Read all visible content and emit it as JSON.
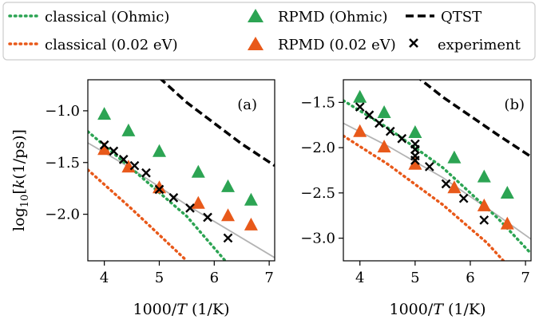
{
  "colors": {
    "green": "#2ca453",
    "orange": "#e8591a",
    "gray": "#b3b3b3",
    "black": "#000000",
    "legend_border": "#cccccc"
  },
  "legend": {
    "entries": [
      {
        "key": "classical_ohmic",
        "label": "classical (Ohmic)"
      },
      {
        "key": "rpmd_ohmic",
        "label": "RPMD (Ohmic)"
      },
      {
        "key": "qtst",
        "label": "QTST"
      },
      {
        "key": "classical_002",
        "label": "classical (0.02 eV)"
      },
      {
        "key": "rpmd_002",
        "label": "RPMD (0.02 eV)"
      },
      {
        "key": "experiment",
        "label": "experiment"
      }
    ]
  },
  "chart_data": [
    {
      "type": "scatter",
      "panel_label": "(a)",
      "xlabel": "1000/T (1/K)",
      "ylabel": "log10[k(1/ps)]",
      "xlim": [
        3.7,
        7.1
      ],
      "ylim": [
        -2.45,
        -0.7
      ],
      "xticks": [
        4,
        5,
        6,
        7
      ],
      "yticks": [
        -1.0,
        -1.5,
        -2.0
      ],
      "ytick_labels": [
        "−1.0",
        "−1.5",
        "−2.0"
      ],
      "series": [
        {
          "name": "QTST",
          "kind": "line",
          "style": "dashed",
          "color": "black",
          "x": [
            5.0,
            5.5,
            6.0,
            6.5,
            7.1
          ],
          "y": [
            -0.68,
            -0.92,
            -1.12,
            -1.32,
            -1.53
          ]
        },
        {
          "name": "classical (Ohmic)",
          "kind": "line",
          "style": "dotted",
          "color": "green",
          "x": [
            3.7,
            4.5,
            5.5,
            6.2
          ],
          "y": [
            -1.2,
            -1.56,
            -2.02,
            -2.45
          ]
        },
        {
          "name": "classical (0.02 eV)",
          "kind": "line",
          "style": "dotted",
          "color": "orange",
          "x": [
            3.7,
            4.5,
            5.2,
            5.5
          ],
          "y": [
            -1.57,
            -1.95,
            -2.3,
            -2.45
          ]
        },
        {
          "name": "fit",
          "kind": "line",
          "style": "solid",
          "color": "gray",
          "x": [
            3.7,
            4.5,
            5.5,
            7.1
          ],
          "y": [
            -1.31,
            -1.56,
            -1.91,
            -2.42
          ]
        },
        {
          "name": "RPMD (Ohmic)",
          "kind": "triangle",
          "color": "green",
          "x": [
            4.0,
            4.44,
            5.0,
            5.71,
            6.25,
            6.67
          ],
          "y": [
            -1.04,
            -1.2,
            -1.4,
            -1.6,
            -1.74,
            -1.87
          ]
        },
        {
          "name": "RPMD (0.02 eV)",
          "kind": "triangle",
          "color": "orange",
          "x": [
            4.0,
            4.44,
            5.0,
            5.71,
            6.25,
            6.67
          ],
          "y": [
            -1.38,
            -1.55,
            -1.75,
            -1.9,
            -2.02,
            -2.11
          ]
        },
        {
          "name": "experiment",
          "kind": "cross",
          "color": "black",
          "x": [
            4.0,
            4.17,
            4.35,
            4.55,
            4.76,
            5.0,
            5.26,
            5.56,
            5.88,
            6.25
          ],
          "y": [
            -1.33,
            -1.39,
            -1.47,
            -1.53,
            -1.6,
            -1.76,
            -1.84,
            -1.94,
            -2.03,
            -2.23
          ]
        }
      ]
    },
    {
      "type": "scatter",
      "panel_label": "(b)",
      "xlabel": "1000/T (1/K)",
      "ylabel": "",
      "xlim": [
        3.7,
        7.1
      ],
      "ylim": [
        -3.25,
        -1.25
      ],
      "xticks": [
        4,
        5,
        6,
        7
      ],
      "yticks": [
        -1.5,
        -2.0,
        -2.5,
        -3.0
      ],
      "ytick_labels": [
        "−1.5",
        "−2.0",
        "−2.5",
        "−3.0"
      ],
      "series": [
        {
          "name": "QTST",
          "kind": "line",
          "style": "dashed",
          "color": "black",
          "x": [
            5.0,
            5.5,
            6.0,
            6.5,
            7.1
          ],
          "y": [
            -1.2,
            -1.44,
            -1.65,
            -1.86,
            -2.1
          ]
        },
        {
          "name": "classical (Ohmic)",
          "kind": "line",
          "style": "dotted",
          "color": "green",
          "x": [
            3.7,
            4.5,
            5.5,
            6.5,
            7.1
          ],
          "y": [
            -1.48,
            -1.78,
            -2.22,
            -2.78,
            -3.17
          ]
        },
        {
          "name": "classical (0.02 eV)",
          "kind": "line",
          "style": "dotted",
          "color": "orange",
          "x": [
            3.7,
            4.5,
            5.5,
            6.3,
            6.6
          ],
          "y": [
            -1.87,
            -2.18,
            -2.63,
            -3.05,
            -3.25
          ]
        },
        {
          "name": "fit",
          "kind": "line",
          "style": "solid",
          "color": "gray",
          "x": [
            3.7,
            4.5,
            5.5,
            6.5,
            7.1
          ],
          "y": [
            -1.73,
            -1.98,
            -2.33,
            -2.75,
            -3.01
          ]
        },
        {
          "name": "RPMD (Ohmic)",
          "kind": "triangle",
          "color": "green",
          "x": [
            4.0,
            4.44,
            5.0,
            5.71,
            6.25,
            6.67
          ],
          "y": [
            -1.45,
            -1.62,
            -1.84,
            -2.12,
            -2.33,
            -2.51
          ]
        },
        {
          "name": "RPMD (0.02 eV)",
          "kind": "triangle",
          "color": "orange",
          "x": [
            4.0,
            4.44,
            5.0,
            5.71,
            6.25,
            6.67
          ],
          "y": [
            -1.83,
            -2.0,
            -2.19,
            -2.45,
            -2.65,
            -2.85
          ]
        },
        {
          "name": "experiment",
          "kind": "cross",
          "color": "black",
          "x": [
            4.0,
            4.17,
            4.35,
            4.55,
            4.76,
            5.0,
            5.0,
            5.0,
            5.0,
            5.26,
            5.56,
            5.88,
            6.25
          ],
          "y": [
            -1.55,
            -1.64,
            -1.73,
            -1.82,
            -1.9,
            -1.96,
            -2.02,
            -2.09,
            -2.14,
            -2.21,
            -2.4,
            -2.56,
            -2.8
          ]
        }
      ]
    }
  ]
}
